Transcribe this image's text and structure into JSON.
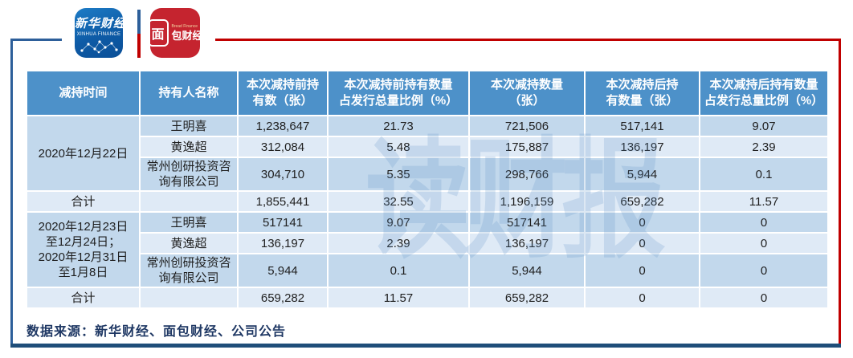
{
  "brand": {
    "xinhua": {
      "name_cn": "新华财经",
      "name_en": "XINHUA FINANCE"
    },
    "bread": {
      "box_char": "面",
      "rest_chars": "包财经",
      "name_en": "Bread Finance"
    }
  },
  "watermark": "读财报",
  "colors": {
    "frame_blue": "#2d5f9a",
    "frame_red": "#c00000",
    "bottom_bar": "#1f4e79",
    "header_bg": "#4d91c9",
    "row_medium": "#c2d8ec",
    "row_light": "#dfeaf6",
    "footer_text": "#1f3864",
    "xinhua_logo_bg": "#0e5ba6",
    "bread_logo_bg": "#c5242f"
  },
  "table": {
    "headers": [
      "减持时间",
      "持有人名称",
      "本次减持前持\n有数（张）",
      "本次减持前持有数量\n占发行总量比例（%）",
      "本次减持数量\n（张）",
      "本次减持后持\n有数量（张）",
      "本次减持后持有数量\n占发行总量比例（%）"
    ],
    "total_label": "合计",
    "groups": [
      {
        "period": "2020年12月22日",
        "rows": [
          {
            "name": "王明喜",
            "before": "1,238,647",
            "before_pct": "21.73",
            "reduced": "721,506",
            "after": "517,141",
            "after_pct": "9.07"
          },
          {
            "name": "黄逸超",
            "before": "312,084",
            "before_pct": "5.48",
            "reduced": "175,887",
            "after": "136,197",
            "after_pct": "2.39"
          },
          {
            "name": "常州创研投资咨询有限公司",
            "before": "304,710",
            "before_pct": "5.35",
            "reduced": "298,766",
            "after": "5,944",
            "after_pct": "0.1"
          }
        ],
        "total": {
          "before": "1,855,441",
          "before_pct": "32.55",
          "reduced": "1,196,159",
          "after": "659,282",
          "after_pct": "11.57"
        }
      },
      {
        "period": "2020年12月23日\n至12月24日；\n2020年12月31日\n至1月8日",
        "rows": [
          {
            "name": "王明喜",
            "before": "517141",
            "before_pct": "9.07",
            "reduced": "517141",
            "after": "0",
            "after_pct": "0"
          },
          {
            "name": "黄逸超",
            "before": "136,197",
            "before_pct": "2.39",
            "reduced": "136,197",
            "after": "0",
            "after_pct": "0"
          },
          {
            "name": "常州创研投资咨询有限公司",
            "before": "5,944",
            "before_pct": "0.1",
            "reduced": "5,944",
            "after": "0",
            "after_pct": "0"
          }
        ],
        "total": {
          "before": "659,282",
          "before_pct": "11.57",
          "reduced": "659,282",
          "after": "0",
          "after_pct": "0"
        }
      }
    ]
  },
  "source_note": "数据来源：新华财经、面包财经、公司公告",
  "chart_data": {
    "type": "table",
    "columns": [
      "减持时间",
      "持有人名称",
      "本次减持前持有数（张）",
      "本次减持前持有数量占发行总量比例（%）",
      "本次减持数量（张）",
      "本次减持后持有数量（张）",
      "本次减持后持有数量占发行总量比例（%）"
    ],
    "rows": [
      [
        "2020年12月22日",
        "王明喜",
        "1,238,647",
        "21.73",
        "721,506",
        "517,141",
        "9.07"
      ],
      [
        "2020年12月22日",
        "黄逸超",
        "312,084",
        "5.48",
        "175,887",
        "136,197",
        "2.39"
      ],
      [
        "2020年12月22日",
        "常州创研投资咨询有限公司",
        "304,710",
        "5.35",
        "298,766",
        "5,944",
        "0.1"
      ],
      [
        "2020年12月22日",
        "合计",
        "1,855,441",
        "32.55",
        "1,196,159",
        "659,282",
        "11.57"
      ],
      [
        "2020年12月23日至12月24日；2020年12月31日至1月8日",
        "王明喜",
        "517141",
        "9.07",
        "517141",
        "0",
        "0"
      ],
      [
        "2020年12月23日至12月24日；2020年12月31日至1月8日",
        "黄逸超",
        "136,197",
        "2.39",
        "136,197",
        "0",
        "0"
      ],
      [
        "2020年12月23日至12月24日；2020年12月31日至1月8日",
        "常州创研投资咨询有限公司",
        "5,944",
        "0.1",
        "5,944",
        "0",
        "0"
      ],
      [
        "2020年12月23日至12月24日；2020年12月31日至1月8日",
        "合计",
        "659,282",
        "11.57",
        "659,282",
        "0",
        "0"
      ]
    ],
    "source": "数据来源：新华财经、面包财经、公司公告"
  }
}
